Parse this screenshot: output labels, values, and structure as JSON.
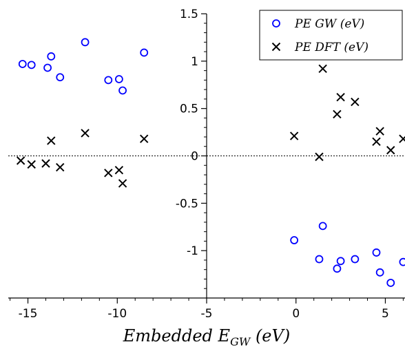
{
  "chart_data": {
    "type": "scatter",
    "xlabel": "Embedded E_GW (eV)",
    "xlabel_parts": {
      "main": "Embedded E",
      "sub": "GW",
      "unit": " (eV)"
    },
    "ylabel": "",
    "xlim": [
      -16.1,
      6.1
    ],
    "ylim": [
      -1.5,
      1.5
    ],
    "x_ticks": [
      -15,
      -10,
      -5,
      0,
      5
    ],
    "x_tick_labels": [
      "-15",
      "-10",
      "-5",
      "0",
      "5"
    ],
    "x_minor_step": 1,
    "y_ticks": [
      -1,
      -0.5,
      0,
      0.5,
      1,
      1.5
    ],
    "y_tick_labels": [
      "-1",
      "-0.5",
      "0",
      "0.5",
      "1",
      "1.5"
    ],
    "y_minor_step": 0.1,
    "zero_line": true,
    "legend_position": "top-right",
    "grid": false,
    "series": [
      {
        "name": "PE GW (eV)",
        "marker": "circle",
        "color": "#0000ff",
        "points": [
          [
            -15.3,
            0.97
          ],
          [
            -14.8,
            0.96
          ],
          [
            -13.9,
            0.93
          ],
          [
            -13.7,
            1.05
          ],
          [
            -13.2,
            0.83
          ],
          [
            -11.8,
            1.2
          ],
          [
            -10.5,
            0.8
          ],
          [
            -9.9,
            0.81
          ],
          [
            -9.7,
            0.69
          ],
          [
            -8.5,
            1.09
          ],
          [
            -0.1,
            -0.89
          ],
          [
            1.3,
            -1.09
          ],
          [
            1.5,
            -0.74
          ],
          [
            2.3,
            -1.19
          ],
          [
            2.5,
            -1.11
          ],
          [
            3.3,
            -1.09
          ],
          [
            4.5,
            -1.02
          ],
          [
            4.7,
            -1.23
          ],
          [
            5.3,
            -1.34
          ],
          [
            6.0,
            -1.12
          ]
        ]
      },
      {
        "name": "PE DFT (eV)",
        "marker": "x",
        "color": "#000000",
        "points": [
          [
            -15.4,
            -0.05
          ],
          [
            -14.8,
            -0.09
          ],
          [
            -14.0,
            -0.08
          ],
          [
            -13.7,
            0.16
          ],
          [
            -13.2,
            -0.12
          ],
          [
            -11.8,
            0.24
          ],
          [
            -10.5,
            -0.18
          ],
          [
            -9.9,
            -0.15
          ],
          [
            -9.7,
            -0.29
          ],
          [
            -8.5,
            0.18
          ],
          [
            -0.1,
            0.21
          ],
          [
            1.3,
            -0.01
          ],
          [
            1.5,
            0.92
          ],
          [
            2.3,
            0.44
          ],
          [
            2.5,
            0.62
          ],
          [
            3.3,
            0.57
          ],
          [
            4.5,
            0.15
          ],
          [
            4.7,
            0.26
          ],
          [
            5.3,
            0.06
          ],
          [
            6.0,
            0.18
          ]
        ]
      }
    ]
  }
}
